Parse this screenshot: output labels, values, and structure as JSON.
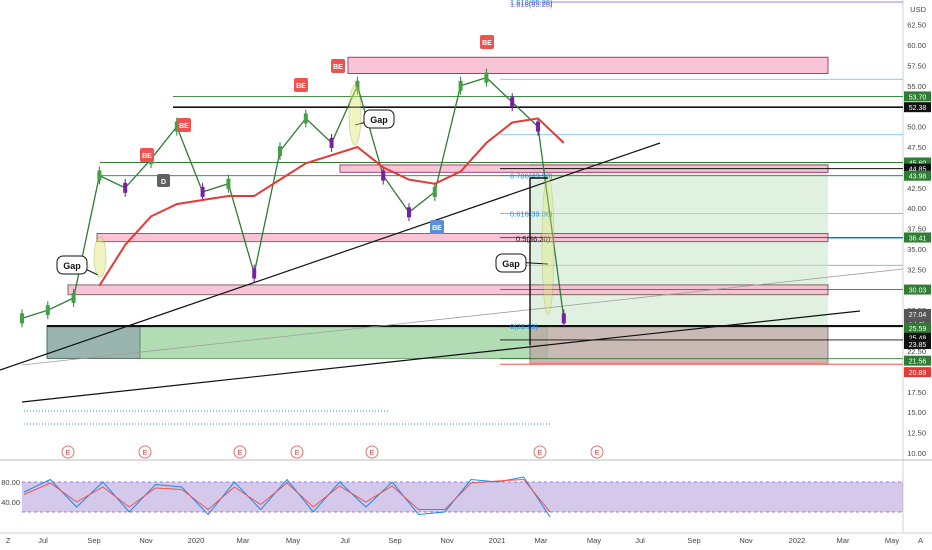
{
  "price_axis": {
    "currency": "USD",
    "ticks": [
      "62.50",
      "60.00",
      "57.50",
      "55.00",
      "52.50",
      "50.00",
      "47.50",
      "45.00",
      "42.50",
      "40.00",
      "37.50",
      "35.00",
      "32.50",
      "30.00",
      "27.50",
      "25.00",
      "22.50",
      "20.00",
      "17.50",
      "15.00",
      "12.50",
      "10.00"
    ],
    "top_label": "1.618(65.26)"
  },
  "price_labels": [
    {
      "text": "53.70",
      "color": "#2e7d32"
    },
    {
      "text": "52.38",
      "color": "#111111"
    },
    {
      "text": "45.60",
      "color": "#2e7d32"
    },
    {
      "text": "44.85",
      "color": "#111111"
    },
    {
      "text": "43.98",
      "color": "#2e7d32"
    },
    {
      "text": "36.41",
      "color": "#2e7d32"
    },
    {
      "text": "30.03",
      "color": "#2e7d32"
    },
    {
      "text": "27.04",
      "color": "#555555"
    },
    {
      "text": "1d 6h",
      "color": "#555555"
    },
    {
      "text": "25.59",
      "color": "#2e7d32"
    },
    {
      "text": "25.48",
      "color": "#111111"
    },
    {
      "text": "23.85",
      "color": "#111111"
    },
    {
      "text": "21.56",
      "color": "#2e7d32"
    },
    {
      "text": "20.89",
      "color": "#e53935"
    }
  ],
  "fib_labels": [
    "0.786(43.98)",
    "0.618(39.36)",
    "0.5(36.30)",
    "0(25.59)",
    "1.618(65.26)"
  ],
  "callouts": [
    "Gap",
    "Gap",
    "Gap"
  ],
  "markers": {
    "be": "BE",
    "e": "E",
    "d": "D"
  },
  "time_axis": {
    "ticks": [
      "Jul",
      "Sep",
      "Nov",
      "2020",
      "Mar",
      "May",
      "Jul",
      "Sep",
      "Nov",
      "2021",
      "Mar",
      "May",
      "Jul",
      "Sep",
      "Nov",
      "2022",
      "Mar",
      "May"
    ],
    "corner_left": "Z",
    "corner_right": "A"
  },
  "oscillator": {
    "ticks": [
      "80.00",
      "40.00",
      "0.00"
    ],
    "band_color": "#b39ddb"
  },
  "chart_data": {
    "type": "line",
    "instrument_currency": "USD",
    "ylim": [
      10,
      65
    ],
    "x_start": "2019-06",
    "x_end": "2022-06",
    "series": [
      {
        "x": [
          "2019-06",
          "2019-07",
          "2019-08",
          "2019-09",
          "2019-10",
          "2019-11",
          "2019-12",
          "2020-01",
          "2020-02",
          "2020-03",
          "2020-04",
          "2020-05",
          "2020-06",
          "2020-07",
          "2020-08",
          "2020-09",
          "2020-10",
          "2020-11",
          "2020-12",
          "2021-01",
          "2021-02",
          "2021-03"
        ],
        "values": [
          26.5,
          27.5,
          29.0,
          44.0,
          42.5,
          46.0,
          50.0,
          42.0,
          43.0,
          32.0,
          47.0,
          51.0,
          48.0,
          55.0,
          44.0,
          39.5,
          42.0,
          55.0,
          56.0,
          53.0,
          50.0,
          26.5
        ]
      },
      {
        "name": "EMA",
        "x": [
          "2019-09",
          "2019-10",
          "2019-11",
          "2019-12",
          "2020-01",
          "2020-02",
          "2020-03",
          "2020-04",
          "2020-05",
          "2020-06",
          "2020-07",
          "2020-08",
          "2020-09",
          "2020-10",
          "2020-11",
          "2020-12",
          "2021-01",
          "2021-02",
          "2021-03"
        ],
        "values": [
          30.5,
          35.5,
          39.0,
          40.5,
          41.0,
          41.5,
          41.5,
          43.5,
          45.5,
          46.5,
          47.5,
          45.0,
          43.5,
          43.0,
          44.5,
          48.0,
          50.5,
          51.0,
          48.0
        ]
      }
    ],
    "zones": [
      {
        "label": "resistance",
        "from": 56.5,
        "to": 58.5
      },
      {
        "label": "supply",
        "from": 44.4,
        "to": 45.3
      },
      {
        "label": "support",
        "from": 35.9,
        "to": 36.9
      },
      {
        "label": "support",
        "from": 29.4,
        "to": 30.6
      },
      {
        "label": "demand",
        "from": 21.6,
        "to": 25.6
      }
    ],
    "levels": [
      53.7,
      52.38,
      45.6,
      44.85,
      43.98,
      36.41,
      30.03,
      25.59,
      25.48,
      23.85,
      21.56,
      20.89
    ],
    "fib": [
      {
        "ratio": "1.618",
        "price": 65.26
      },
      {
        "ratio": "0.786",
        "price": 43.98
      },
      {
        "ratio": "0.618",
        "price": 39.36
      },
      {
        "ratio": "0.5",
        "price": 36.3
      },
      {
        "ratio": "0",
        "price": 25.59
      }
    ],
    "current_price": 27.04,
    "oscillator": {
      "type": "stochastic RSI",
      "ylim": [
        0,
        100
      ],
      "upper": 80,
      "lower": 20,
      "k": [
        60,
        85,
        30,
        80,
        20,
        75,
        70,
        15,
        80,
        25,
        85,
        20,
        80,
        30,
        80,
        15,
        20,
        85,
        80,
        90,
        10
      ],
      "d": [
        55,
        78,
        40,
        70,
        30,
        68,
        65,
        25,
        70,
        35,
        78,
        30,
        72,
        40,
        72,
        25,
        25,
        78,
        82,
        85,
        20
      ]
    }
  }
}
